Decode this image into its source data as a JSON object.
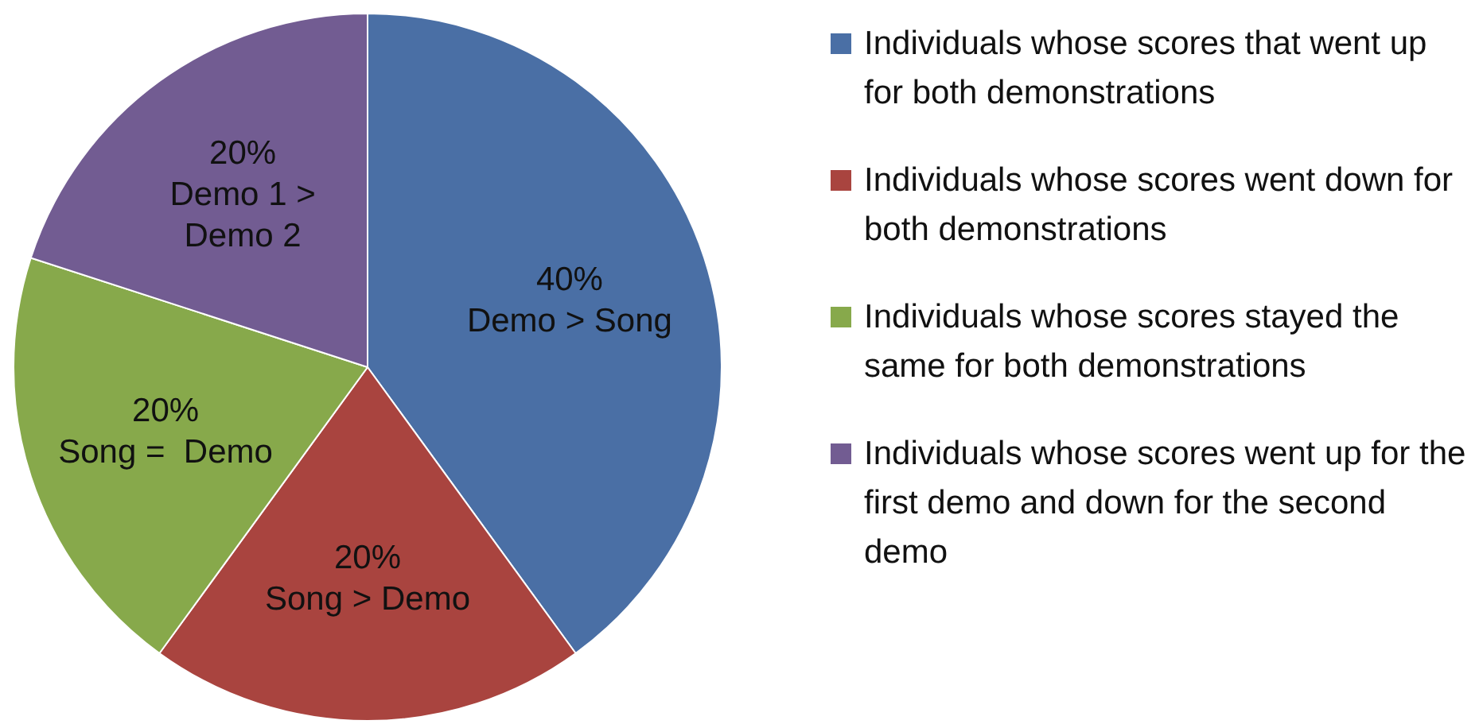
{
  "chart_data": {
    "type": "pie",
    "categories": [
      "Individuals whose scores that went up for both demonstrations",
      "Individuals whose scores went down for both demonstrations",
      "Individuals whose scores stayed the same for both demonstrations",
      "Individuals whose scores went up for the first demo and down for the second demo"
    ],
    "values": [
      40,
      20,
      20,
      20
    ],
    "value_labels": [
      "40%\nDemo > Song",
      "20%\nSong > Demo",
      "20%\nSong =  Demo",
      "20%\nDemo 1 >\nDemo 2"
    ],
    "colors": [
      "#4a6fa5",
      "#a9443f",
      "#87a94b",
      "#725c92"
    ],
    "legend": "right"
  }
}
